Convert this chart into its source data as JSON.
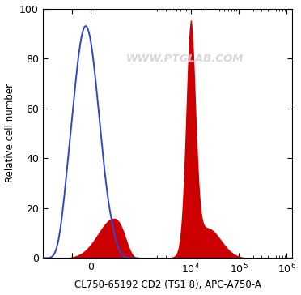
{
  "xlabel": "CL750-65192 CD2 (TS1 8), APC-A750-A",
  "ylabel": "Relative cell number",
  "ylim": [
    0,
    100
  ],
  "background_color": "#ffffff",
  "blue_color": "#3344cc",
  "red_color": "#cc0000",
  "red_fill_color": "#cc0000",
  "watermark": "WWW.PTGLAB.COM",
  "watermark_color": "#d0d0d0",
  "tick_label_fontsize": 9,
  "axis_label_fontsize": 8.5
}
